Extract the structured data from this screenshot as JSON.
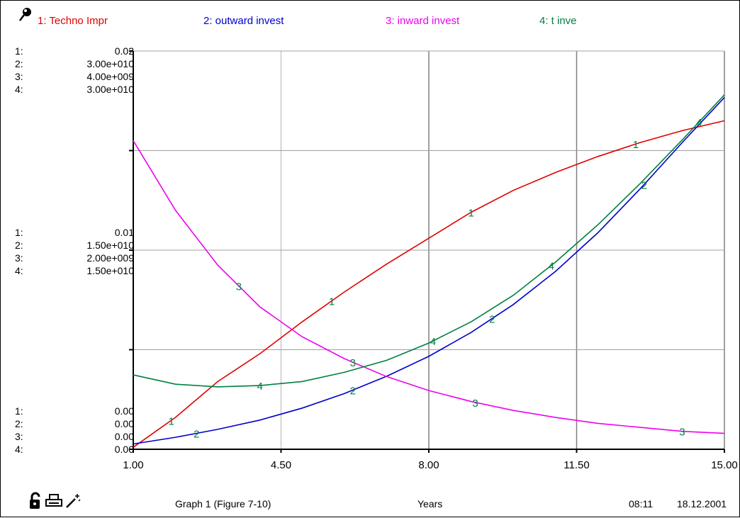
{
  "legend": [
    {
      "label": "1: Techno Impr",
      "color": "#e00000"
    },
    {
      "label": "2: outward invest",
      "color": "#0000cc"
    },
    {
      "label": "3: inward invest",
      "color": "#ee00ee"
    },
    {
      "label": "4: t inve",
      "color": "#008040"
    }
  ],
  "scales": {
    "top": [
      {
        "label": "1:",
        "value": "0.02"
      },
      {
        "label": "2:",
        "value": "3.00e+010"
      },
      {
        "label": "3:",
        "value": "4.00e+009"
      },
      {
        "label": "4:",
        "value": "3.00e+010"
      }
    ],
    "middle": [
      {
        "label": "1:",
        "value": "0.01"
      },
      {
        "label": "2:",
        "value": "1.50e+010"
      },
      {
        "label": "3:",
        "value": "2.00e+009"
      },
      {
        "label": "4:",
        "value": "1.50e+010"
      }
    ],
    "bottom": [
      {
        "label": "1:",
        "value": "0.00"
      },
      {
        "label": "2:",
        "value": "0.00"
      },
      {
        "label": "3:",
        "value": "0.00"
      },
      {
        "label": "4:",
        "value": "0.00"
      }
    ]
  },
  "footer": {
    "graph_title": "Graph 1 (Figure 7-10)",
    "xlabel": "Years",
    "time": "08:11",
    "date": "18.12.2001"
  },
  "icons": [
    "lock-icon",
    "printer-icon",
    "magic-wand-icon"
  ],
  "chart_data": {
    "type": "line",
    "xlabel": "Years",
    "xlim": [
      1,
      15
    ],
    "x_ticks": [
      "1.00",
      "4.50",
      "8.00",
      "11.50",
      "15.00"
    ],
    "grid": true,
    "series": [
      {
        "name": "1: Techno Impr",
        "marker": "1",
        "color": "#e00000",
        "ylim": [
          0,
          0.02
        ],
        "x": [
          1,
          2,
          3,
          4,
          5,
          6,
          7,
          8,
          9,
          10,
          11,
          12,
          13,
          14,
          15
        ],
        "y": [
          0.0001,
          0.0016,
          0.0034,
          0.0048,
          0.0064,
          0.0079,
          0.0093,
          0.0106,
          0.0119,
          0.013,
          0.0139,
          0.0147,
          0.0154,
          0.016,
          0.0165
        ]
      },
      {
        "name": "2: outward invest",
        "marker": "2",
        "color": "#0000cc",
        "ylim": [
          0,
          30000000000
        ],
        "x": [
          1,
          2,
          3,
          4,
          5,
          6,
          7,
          8,
          9,
          10,
          11,
          12,
          13,
          14,
          15
        ],
        "y": [
          400000000,
          900000000,
          1500000000,
          2200000000,
          3100000000,
          4200000000,
          5500000000,
          7000000000,
          8800000000,
          10900000000,
          13400000000,
          16300000000,
          19600000000,
          23100000000,
          26500000000
        ]
      },
      {
        "name": "3: inward invest",
        "marker": "3",
        "color": "#ee00ee",
        "ylim": [
          0,
          4000000000
        ],
        "x": [
          1,
          2,
          3,
          4,
          5,
          6,
          7,
          8,
          9,
          10,
          11,
          12,
          13,
          14,
          15
        ],
        "y": [
          3100000000,
          2400000000,
          1850000000,
          1430000000,
          1130000000,
          910000000,
          730000000,
          590000000,
          480000000,
          390000000,
          320000000,
          260000000,
          220000000,
          180000000,
          160000000
        ]
      },
      {
        "name": "4: t inve",
        "marker": "4",
        "color": "#008040",
        "ylim": [
          0,
          30000000000
        ],
        "x": [
          1,
          2,
          3,
          4,
          5,
          6,
          7,
          8,
          9,
          10,
          11,
          12,
          13,
          14,
          15
        ],
        "y": [
          5600000000,
          4900000000,
          4700000000,
          4800000000,
          5100000000,
          5800000000,
          6700000000,
          8000000000,
          9600000000,
          11600000000,
          14100000000,
          16900000000,
          20000000000,
          23300000000,
          26700000000
        ]
      }
    ],
    "marker_positions": {
      "1": [
        1.9,
        5.7,
        9.0,
        12.9
      ],
      "2": [
        2.5,
        6.2,
        9.5,
        13.1
      ],
      "3": [
        3.5,
        6.2,
        9.1,
        14.0
      ],
      "4": [
        4.0,
        8.1,
        10.9,
        14.4
      ]
    }
  }
}
